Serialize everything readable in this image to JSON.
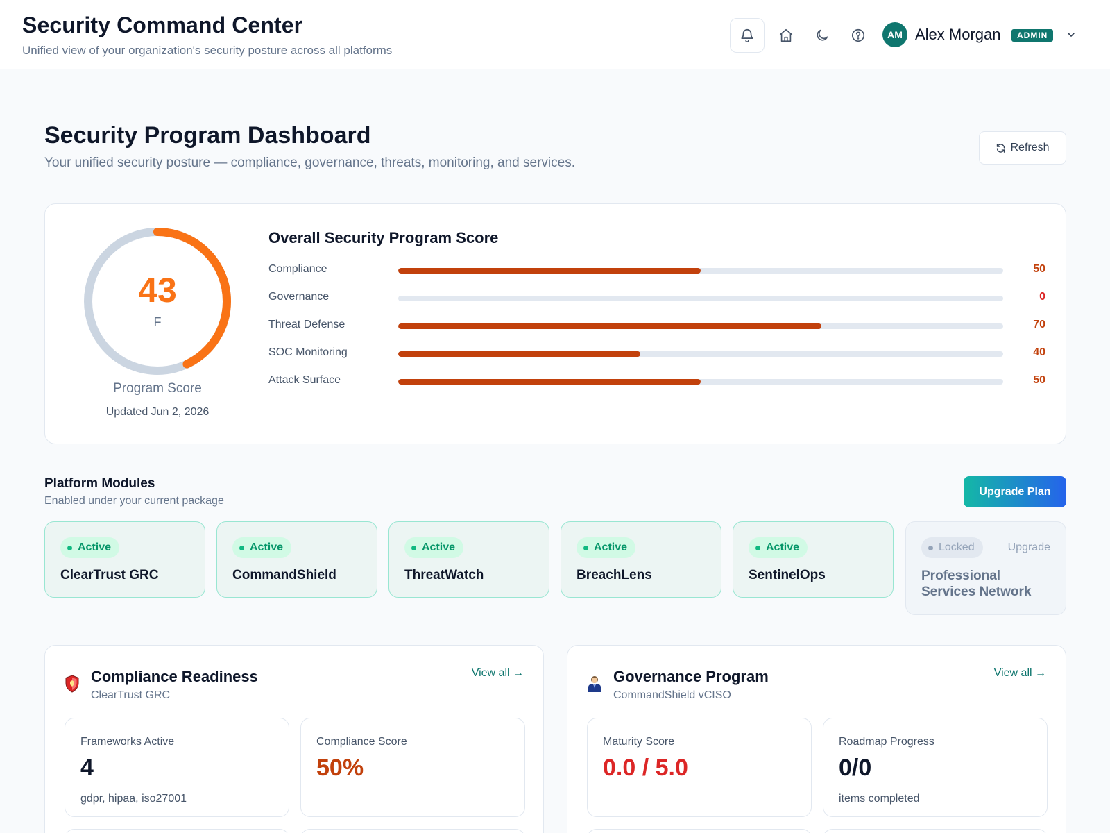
{
  "header": {
    "title": "Security Command Center",
    "subtitle": "Unified view of your organization's security posture across all platforms",
    "icons": [
      "bell-icon",
      "home-icon",
      "moon-icon",
      "help-icon",
      "chevron-down-icon"
    ],
    "user": {
      "initials": "AM",
      "name": "Alex Morgan",
      "role": "ADMIN"
    }
  },
  "page": {
    "title": "Security Program Dashboard",
    "subtitle": "Your unified security posture — compliance, governance, threats, monitoring, and services.",
    "refresh_label": "Refresh"
  },
  "program_score": {
    "score": "43",
    "score_fraction": 0.43,
    "grade": "F",
    "label": "Program Score",
    "updated": "Updated Jun 2, 2026",
    "heading": "Overall Security Program Score",
    "metrics": [
      {
        "label": "Compliance",
        "value": "50",
        "percent": 50
      },
      {
        "label": "Governance",
        "value": "0",
        "percent": 0
      },
      {
        "label": "Threat Defense",
        "value": "70",
        "percent": 70
      },
      {
        "label": "SOC Monitoring",
        "value": "40",
        "percent": 40
      },
      {
        "label": "Attack Surface",
        "value": "50",
        "percent": 50
      }
    ]
  },
  "modules": {
    "title": "Platform Modules",
    "subtitle": "Enabled under your current package",
    "upgrade_label": "Upgrade Plan",
    "items": [
      {
        "status": "Active",
        "name": "ClearTrust GRC"
      },
      {
        "status": "Active",
        "name": "CommandShield"
      },
      {
        "status": "Active",
        "name": "ThreatWatch"
      },
      {
        "status": "Active",
        "name": "BreachLens"
      },
      {
        "status": "Active",
        "name": "SentinelOps"
      },
      {
        "status": "Locked",
        "name": "Professional Services Network",
        "action": "Upgrade"
      }
    ]
  },
  "compliance": {
    "title": "Compliance Readiness",
    "subtitle": "ClearTrust GRC",
    "view_all": "View all →",
    "icon": "shield-icon",
    "stats": [
      {
        "label": "Frameworks Active",
        "value": "4",
        "note": "gdpr, hipaa, iso27001"
      },
      {
        "label": "Compliance Score",
        "value": "50%"
      }
    ]
  },
  "governance": {
    "title": "Governance Program",
    "subtitle": "CommandShield vCISO",
    "view_all": "View all →",
    "icon": "person-icon",
    "stats": [
      {
        "label": "Maturity Score",
        "value": "0.0 / 5.0"
      },
      {
        "label": "Roadmap Progress",
        "value": "0/0",
        "note": "items completed"
      }
    ]
  },
  "colors": {
    "accent": "#0f766e",
    "score_orange": "#f97316",
    "bar_fill": "#c2410c",
    "danger": "#dc2626",
    "active_green": "#10b981"
  }
}
